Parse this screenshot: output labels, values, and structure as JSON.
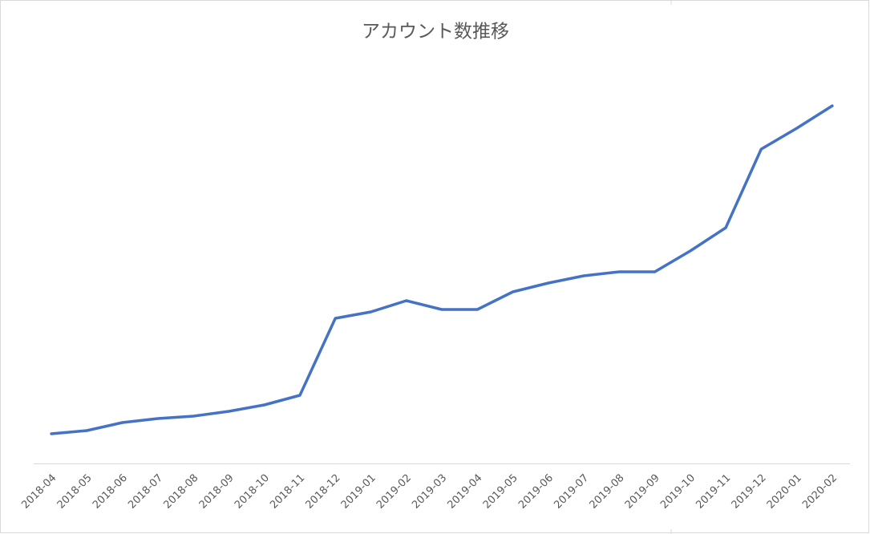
{
  "chart_data": {
    "type": "line",
    "title": "アカウント数推移",
    "categories": [
      "2018-04",
      "2018-05",
      "2018-06",
      "2018-07",
      "2018-08",
      "2018-09",
      "2018-10",
      "2018-11",
      "2018-12",
      "2019-01",
      "2019-02",
      "2019-03",
      "2019-04",
      "2019-05",
      "2019-06",
      "2019-07",
      "2019-08",
      "2019-09",
      "2019-10",
      "2019-11",
      "2019-12",
      "2020-01",
      "2020-02"
    ],
    "values": [
      37,
      41,
      51,
      56,
      59,
      65,
      73,
      85,
      181,
      189,
      203,
      192,
      192,
      214,
      225,
      234,
      239,
      239,
      265,
      294,
      392,
      418,
      446
    ],
    "color": "#4472c4",
    "ylim": [
      0,
      500
    ]
  }
}
